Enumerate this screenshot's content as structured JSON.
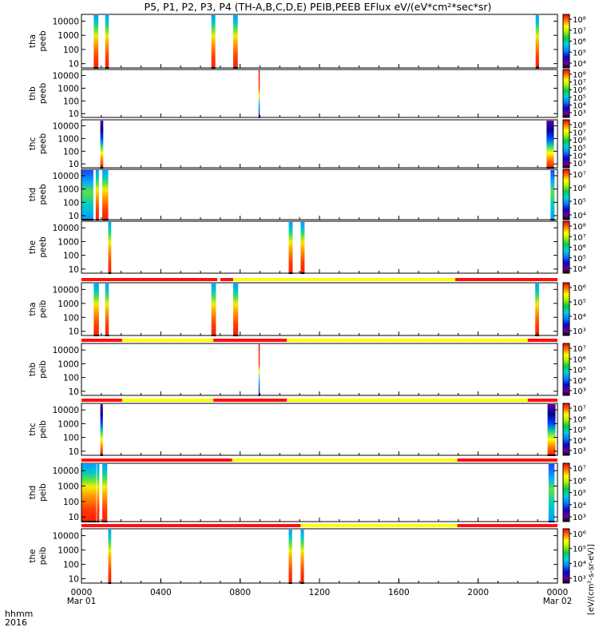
{
  "chart_data": {
    "type": "heatmap",
    "title": "P5, P1, P2, P3, P4 (TH-A,B,C,D,E) PEIB,PEEB EFlux eV/(eV*cm²*sec*sr)",
    "xaxis": {
      "label_line1": "hhmm",
      "label_line2": "2016",
      "ticks": [
        "0000",
        "0400",
        "0800",
        "1200",
        "1600",
        "2000",
        "0000"
      ],
      "tick_hours": [
        0,
        4,
        8,
        12,
        16,
        20,
        24
      ],
      "date_labels": [
        {
          "hour": 0,
          "text": "Mar 01"
        },
        {
          "hour": 24,
          "text": "Mar 02"
        }
      ],
      "range_hours": [
        0,
        24
      ]
    },
    "yaxis": {
      "scale": "log",
      "range": [
        5,
        30000
      ],
      "ticks": [
        10,
        100,
        1000,
        10000
      ],
      "tick_labels": [
        "10",
        "100",
        "1000",
        "10000"
      ]
    },
    "colorbar_unit_label": "[eV/(cm²-s-sr-eV)]",
    "panels": [
      {
        "label1": "tha",
        "label2": "peeb",
        "cbar_labels": [
          "10⁴",
          "10⁵",
          "10⁶",
          "10⁷",
          "10⁸"
        ],
        "mode_bar": null,
        "bursts": [
          [
            0.62,
            0.85,
            1
          ],
          [
            1.2,
            1.38,
            1
          ],
          [
            6.55,
            6.75,
            1
          ],
          [
            7.65,
            7.88,
            1
          ],
          [
            22.9,
            23.07,
            1
          ]
        ]
      },
      {
        "label1": "thb",
        "label2": "peeb",
        "cbar_labels": [
          "10³",
          "10⁴",
          "10⁵",
          "10⁶",
          "10⁷",
          "10⁸"
        ],
        "mode_bar": null,
        "bursts": [
          [
            8.93,
            8.98,
            3
          ]
        ]
      },
      {
        "label1": "thc",
        "label2": "peeb",
        "cbar_labels": [
          "10³",
          "10⁴",
          "10⁵",
          "10⁶",
          "10⁷",
          "10⁸"
        ],
        "mode_bar": null,
        "bursts": [
          [
            0.95,
            1.1,
            2
          ],
          [
            23.45,
            23.82,
            2
          ]
        ]
      },
      {
        "label1": "thd",
        "label2": "peeb",
        "cbar_labels": [
          "10⁴",
          "10⁵",
          "10⁶",
          "10⁷"
        ],
        "mode_bar": null,
        "bursts": [
          [
            0.0,
            0.6,
            4
          ],
          [
            0.72,
            0.88,
            1
          ],
          [
            1.05,
            1.35,
            1
          ],
          [
            23.65,
            23.85,
            4
          ]
        ]
      },
      {
        "label1": "the",
        "label2": "peeb",
        "cbar_labels": [
          "10⁴",
          "10⁵",
          "10⁶",
          "10⁷",
          "10⁸"
        ],
        "mode_bar": null,
        "bursts": [
          [
            1.35,
            1.5,
            1
          ],
          [
            10.45,
            10.65,
            1
          ],
          [
            11.05,
            11.25,
            1
          ]
        ]
      },
      {
        "label1": "tha",
        "label2": "peib",
        "cbar_labels": [
          "10³",
          "10⁴",
          "10⁵",
          "10⁶"
        ],
        "mode_bar": [
          [
            0,
            6.85,
            "red"
          ],
          [
            6.85,
            7.0,
            "white"
          ],
          [
            7.0,
            7.65,
            "red"
          ],
          [
            7.65,
            18.85,
            "yellow"
          ],
          [
            18.85,
            24,
            "red"
          ]
        ],
        "bursts": [
          [
            0.62,
            0.88,
            1
          ],
          [
            1.2,
            1.38,
            1
          ],
          [
            6.55,
            6.78,
            1
          ],
          [
            7.65,
            7.9,
            1
          ],
          [
            22.88,
            23.07,
            1
          ]
        ]
      },
      {
        "label1": "thb",
        "label2": "peib",
        "cbar_labels": [
          "10³",
          "10⁴",
          "10⁵",
          "10⁶",
          "10⁷"
        ],
        "mode_bar": [
          [
            0,
            2.05,
            "red"
          ],
          [
            2.05,
            6.65,
            "yellow"
          ],
          [
            6.65,
            10.35,
            "red"
          ],
          [
            10.35,
            22.5,
            "yellow"
          ],
          [
            22.5,
            24,
            "red"
          ]
        ],
        "bursts": [
          [
            8.93,
            8.98,
            3
          ]
        ]
      },
      {
        "label1": "thc",
        "label2": "peib",
        "cbar_labels": [
          "10³",
          "10⁴",
          "10⁵",
          "10⁶",
          "10⁷"
        ],
        "mode_bar": [
          [
            0,
            2.05,
            "red"
          ],
          [
            2.05,
            6.65,
            "yellow"
          ],
          [
            6.65,
            10.35,
            "red"
          ],
          [
            10.35,
            22.5,
            "yellow"
          ],
          [
            22.5,
            24,
            "red"
          ]
        ],
        "bursts": [
          [
            0.95,
            1.08,
            2
          ],
          [
            23.5,
            23.9,
            2
          ]
        ]
      },
      {
        "label1": "thd",
        "label2": "peib",
        "cbar_labels": [
          "10³",
          "10⁴",
          "10⁵",
          "10⁶",
          "10⁷"
        ],
        "mode_bar": [
          [
            0,
            7.6,
            "red"
          ],
          [
            7.6,
            18.95,
            "yellow"
          ],
          [
            18.95,
            24,
            "red"
          ]
        ],
        "bursts": [
          [
            0.0,
            0.75,
            1
          ],
          [
            0.78,
            0.9,
            1
          ],
          [
            1.05,
            1.3,
            1
          ],
          [
            23.55,
            23.85,
            4
          ]
        ]
      },
      {
        "label1": "the",
        "label2": "peib",
        "cbar_labels": [
          "10³",
          "10⁴",
          "10⁵",
          "10⁶"
        ],
        "mode_bar": [
          [
            0,
            11.05,
            "red"
          ],
          [
            11.05,
            18.95,
            "yellow"
          ],
          [
            18.95,
            24,
            "red"
          ]
        ],
        "bursts": [
          [
            1.35,
            1.5,
            1
          ],
          [
            10.45,
            10.62,
            1
          ],
          [
            11.05,
            11.22,
            1
          ]
        ]
      }
    ]
  }
}
